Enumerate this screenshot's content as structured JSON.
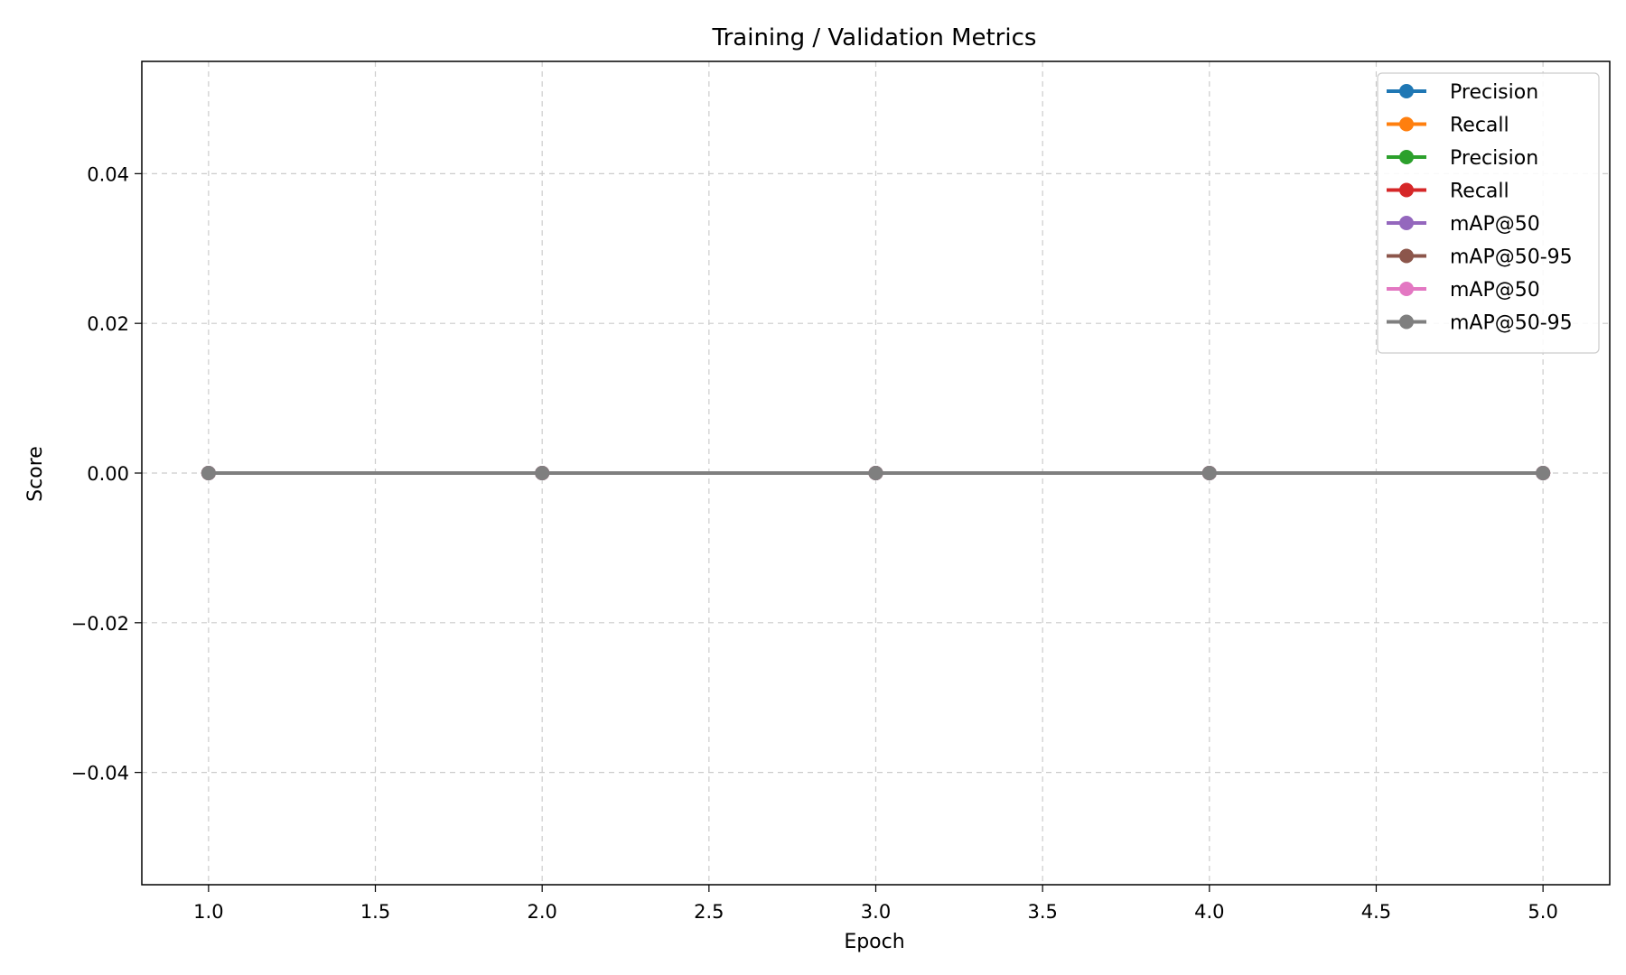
{
  "chart_data": {
    "type": "line",
    "title": "Training / Validation Metrics",
    "xlabel": "Epoch",
    "ylabel": "Score",
    "x": [
      1,
      2,
      3,
      4,
      5
    ],
    "xlim": [
      0.8,
      5.2
    ],
    "ylim": [
      -0.055,
      0.055
    ],
    "xticks": [
      1.0,
      1.5,
      2.0,
      2.5,
      3.0,
      3.5,
      4.0,
      4.5,
      5.0
    ],
    "xtick_labels": [
      "1.0",
      "1.5",
      "2.0",
      "2.5",
      "3.0",
      "3.5",
      "4.0",
      "4.5",
      "5.0"
    ],
    "yticks": [
      -0.04,
      -0.02,
      0.0,
      0.02,
      0.04
    ],
    "ytick_labels": [
      "−0.04",
      "−0.02",
      "0.00",
      "0.02",
      "0.04"
    ],
    "grid": true,
    "legend_position": "top-right",
    "series": [
      {
        "name": "Precision",
        "color": "#1f77b4",
        "values": [
          0,
          0,
          0,
          0,
          0
        ]
      },
      {
        "name": "Recall",
        "color": "#ff7f0e",
        "values": [
          0,
          0,
          0,
          0,
          0
        ]
      },
      {
        "name": "Precision",
        "color": "#2ca02c",
        "values": [
          0,
          0,
          0,
          0,
          0
        ]
      },
      {
        "name": "Recall",
        "color": "#d62728",
        "values": [
          0,
          0,
          0,
          0,
          0
        ]
      },
      {
        "name": "mAP@50",
        "color": "#9467bd",
        "values": [
          0,
          0,
          0,
          0,
          0
        ]
      },
      {
        "name": "mAP@50-95",
        "color": "#8c564b",
        "values": [
          0,
          0,
          0,
          0,
          0
        ]
      },
      {
        "name": "mAP@50",
        "color": "#e377c2",
        "values": [
          0,
          0,
          0,
          0,
          0
        ]
      },
      {
        "name": "mAP@50-95",
        "color": "#7f7f7f",
        "values": [
          0,
          0,
          0,
          0,
          0
        ]
      }
    ]
  }
}
